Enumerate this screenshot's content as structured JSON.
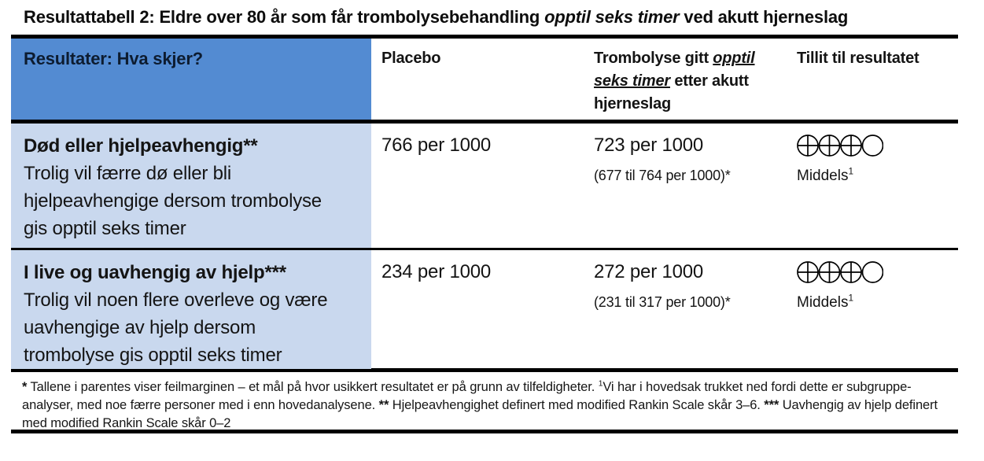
{
  "title": {
    "part1": "Resultattabell 2: Eldre over 80 år som får trombolysebehandling ",
    "italic": "opptil seks timer",
    "part2": " ved akutt hjerneslag"
  },
  "colors": {
    "header_bg": "#538bd2",
    "row_bg": "#c9d8ee",
    "rule": "#000000"
  },
  "header": {
    "outcome": "Resultater: Hva skjer?",
    "placebo": "Placebo",
    "intervention_part1": "Trombolyse gitt ",
    "intervention_u1": "opptil",
    "intervention_u2": "seks timer",
    "intervention_part2": " etter akutt",
    "intervention_part3": "hjerneslag",
    "confidence": "Tillit til resultatet"
  },
  "rows": [
    {
      "outcome_title": "Død eller hjelpeavhengig**",
      "outcome_desc_lines": [
        "Trolig vil færre dø eller bli",
        "hjelpeavhengige dersom trombolyse",
        "gis opptil seks timer"
      ],
      "placebo": "766 per 1000",
      "intervention": "723 per 1000",
      "interval": "(677 til 764 per 1000)*",
      "grade": {
        "filled": 3,
        "total": 4,
        "label": "Middels",
        "footnote_ref": "1"
      }
    },
    {
      "outcome_title": "I live og uavhengig av hjelp***",
      "outcome_desc_lines": [
        "Trolig vil noen flere overleve og være",
        "uavhengige av hjelp dersom",
        "trombolyse gis opptil seks timer"
      ],
      "placebo": "234 per 1000",
      "intervention": "272 per 1000",
      "interval": "(231 til 317 per 1000)*",
      "grade": {
        "filled": 3,
        "total": 4,
        "label": "Middels",
        "footnote_ref": "1"
      }
    }
  ],
  "footnote": {
    "m1": "*",
    "t1": " Tallene i parentes viser feilmarginen – et mål på hvor usikkert resultatet er på grunn av tilfeldigheter. ",
    "sup1": "1",
    "t2": "Vi har i hovedsak trukket ned fordi dette er subgruppe-analyser, med noe færre personer med i enn hovedanalysene. ",
    "m2": "**",
    "t3": " Hjelpeavhengighet definert med modified Rankin Scale skår 3–6. ",
    "m3": "***",
    "t4": " Uavhengig av hjelp definert med modified Rankin Scale skår 0–2"
  }
}
